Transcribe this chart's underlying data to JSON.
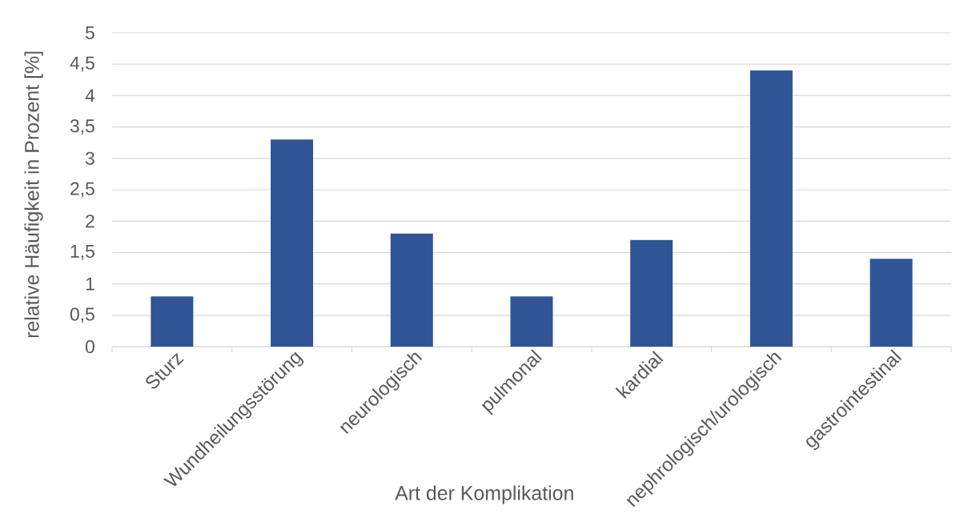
{
  "chart_data": {
    "type": "bar",
    "xlabel": "Art der Komplikation",
    "ylabel": "relative Häufigkeit in Prozent [%]",
    "categories": [
      "Sturz",
      "Wundheilungsstörung",
      "neurologisch",
      "pulmonal",
      "kardial",
      "nephrologisch/urologisch",
      "gastrointestinal"
    ],
    "values": [
      0.8,
      3.3,
      1.8,
      0.8,
      1.7,
      4.4,
      1.4
    ],
    "color": "#2f5597",
    "ylim": [
      0,
      5
    ],
    "yticks": [
      0,
      {
        "value": 0.5,
        "label": "0,5"
      },
      1,
      {
        "value": 1.5,
        "label": "1,5"
      },
      2,
      {
        "value": 2.5,
        "label": "2,5"
      },
      3,
      {
        "value": 3.5,
        "label": "3,5"
      },
      4,
      {
        "value": 4.5,
        "label": "4,5"
      },
      5
    ],
    "grid": "y"
  }
}
